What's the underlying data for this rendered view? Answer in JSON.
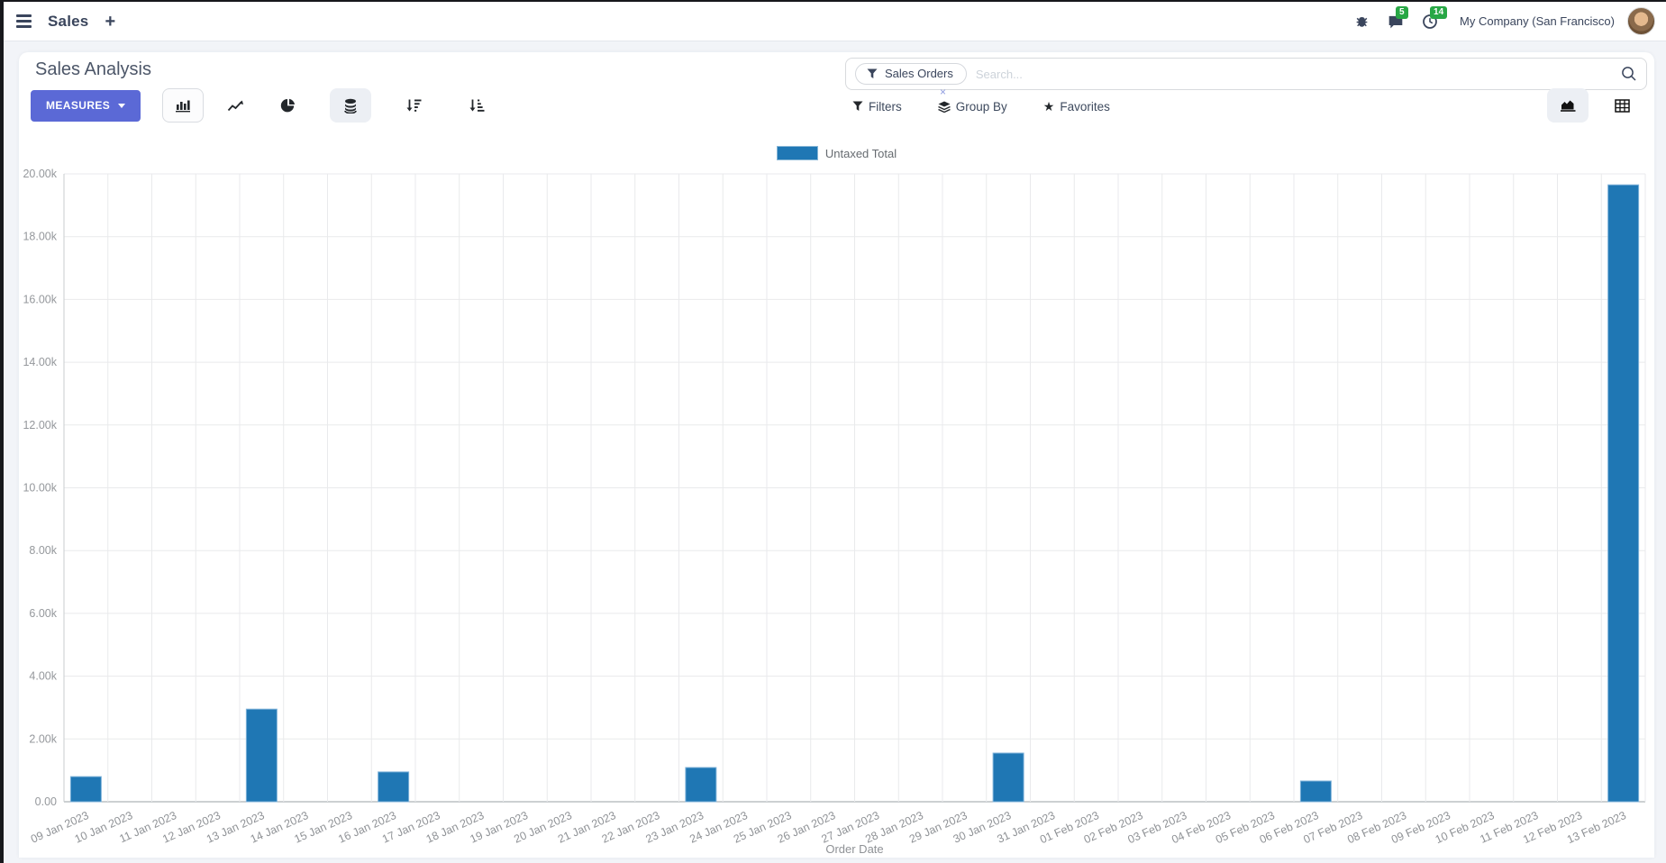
{
  "header": {
    "app_name": "Sales",
    "plus": "+",
    "messages_badge": "5",
    "activities_badge": "14",
    "company": "My Company (San Francisco)"
  },
  "control_panel": {
    "title": "Sales Analysis",
    "measures_label": "MEASURES",
    "search": {
      "facet_label": "Sales Orders",
      "facet_remove": "×",
      "placeholder": "Search..."
    },
    "filters_label": "Filters",
    "group_by_label": "Group By",
    "favorites_label": "Favorites"
  },
  "chart_data": {
    "type": "bar",
    "title": "",
    "legend": [
      "Untaxed Total"
    ],
    "series_color": "#1f77b4",
    "xlabel": "Order Date",
    "ylabel": "",
    "ylim": [
      0,
      20000
    ],
    "grid": true,
    "legend_position": "top-center",
    "y_ticks": [
      "20.00k",
      "18.00k",
      "16.00k",
      "14.00k",
      "12.00k",
      "10.00k",
      "8.00k",
      "6.00k",
      "4.00k",
      "2.00k",
      "0.00"
    ],
    "categories": [
      "09 Jan 2023",
      "10 Jan 2023",
      "11 Jan 2023",
      "12 Jan 2023",
      "13 Jan 2023",
      "14 Jan 2023",
      "15 Jan 2023",
      "16 Jan 2023",
      "17 Jan 2023",
      "18 Jan 2023",
      "19 Jan 2023",
      "20 Jan 2023",
      "21 Jan 2023",
      "22 Jan 2023",
      "23 Jan 2023",
      "24 Jan 2023",
      "25 Jan 2023",
      "26 Jan 2023",
      "27 Jan 2023",
      "28 Jan 2023",
      "29 Jan 2023",
      "30 Jan 2023",
      "31 Jan 2023",
      "01 Feb 2023",
      "02 Feb 2023",
      "03 Feb 2023",
      "04 Feb 2023",
      "05 Feb 2023",
      "06 Feb 2023",
      "07 Feb 2023",
      "08 Feb 2023",
      "09 Feb 2023",
      "10 Feb 2023",
      "11 Feb 2023",
      "12 Feb 2023",
      "13 Feb 2023"
    ],
    "values": [
      800,
      0,
      0,
      0,
      2950,
      0,
      0,
      950,
      0,
      0,
      0,
      0,
      0,
      0,
      1090,
      0,
      0,
      0,
      0,
      0,
      0,
      1550,
      0,
      0,
      0,
      0,
      0,
      0,
      660,
      0,
      0,
      0,
      0,
      0,
      0,
      19650
    ]
  }
}
